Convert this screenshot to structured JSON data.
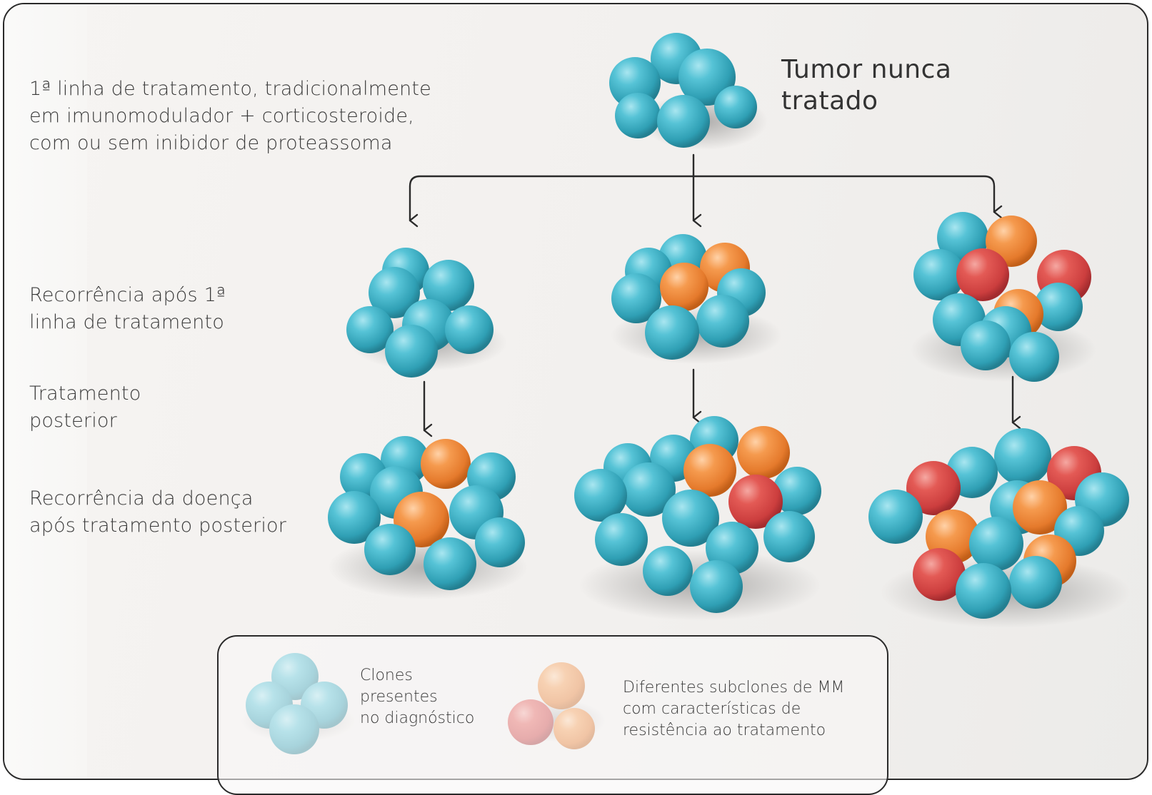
{
  "title": "Tumor nunca\ntratado",
  "row_labels": {
    "first_line": "1ª linha de tratamento, tradicionalmente\nem imunomodulador + corticosteroide,\ncom ou sem inibidor de proteassoma",
    "recurrence_first": "Recorrência após 1ª\nlinha de tratamento",
    "subsequent": "Tratamento\nposterior",
    "recurrence_subsequent": "Recorrência da doença\napós tratamento posterior"
  },
  "legend": {
    "clones_label": "Clones\npresentes\nno diagnóstico",
    "subclones_label": "Diferentes subclones de MM\ncom características de\nresistência ao tratamento"
  },
  "colors": {
    "clone_blue": "#45b8cc",
    "subclone_orange": "#f08c3c",
    "subclone_red": "#db4c4c",
    "line": "#2a2a2a"
  }
}
